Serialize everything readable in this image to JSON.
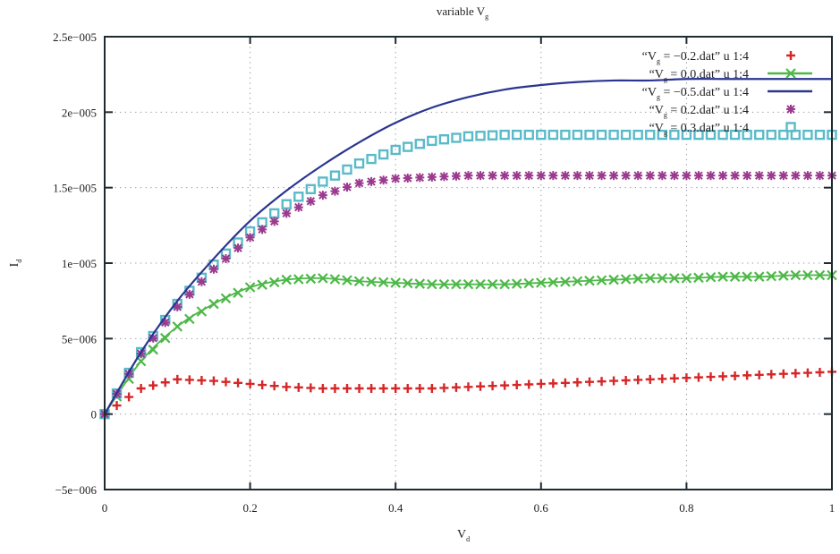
{
  "chart_data": {
    "type": "line",
    "title": "variable V",
    "title_subscript": "g",
    "xlabel": "V",
    "xlabel_subscript": "d",
    "ylabel": "I",
    "ylabel_subscript": "d",
    "xlim": [
      0,
      1
    ],
    "ylim": [
      -5e-06,
      2.5e-05
    ],
    "grid": true,
    "legend_position": "top-right",
    "x_ticks": [
      0,
      0.2,
      0.4,
      0.6,
      0.8,
      1
    ],
    "x_tick_labels": [
      "0",
      "0.2",
      "0.4",
      "0.6",
      "0.8",
      "1"
    ],
    "y_ticks": [
      -5e-06,
      0,
      5e-06,
      1e-05,
      1.5e-05,
      2e-05,
      2.5e-05
    ],
    "y_tick_labels": [
      "−5e−006",
      "0",
      "5e−006",
      "1e−005",
      "1.5e−005",
      "2e−005",
      "2.5e−005"
    ],
    "x": [
      0,
      0.05,
      0.1,
      0.15,
      0.2,
      0.25,
      0.3,
      0.35,
      0.4,
      0.45,
      0.5,
      0.55,
      0.6,
      0.65,
      0.7,
      0.75,
      0.8,
      0.85,
      0.9,
      0.95,
      1.0
    ],
    "series": [
      {
        "name": "“Vg = −0.2.dat” u 1:4",
        "legend_prefix": "“V",
        "legend_sub": "g",
        "legend_suffix": " = −0.2.dat” u 1:4",
        "style": "points",
        "marker": "plus",
        "color": "#d62728",
        "values": [
          0,
          1.7e-06,
          2.3e-06,
          2.2e-06,
          2e-06,
          1.8e-06,
          1.7e-06,
          1.7e-06,
          1.7e-06,
          1.7e-06,
          1.8e-06,
          1.9e-06,
          2e-06,
          2.1e-06,
          2.2e-06,
          2.3e-06,
          2.4e-06,
          2.5e-06,
          2.6e-06,
          2.7e-06,
          2.8e-06
        ]
      },
      {
        "name": "“Vg = 0.0.dat” u 1:4",
        "legend_prefix": "“V",
        "legend_sub": "g",
        "legend_suffix": " = 0.0.dat” u 1:4",
        "style": "linespoints",
        "marker": "x",
        "color": "#4db848",
        "values": [
          0,
          3.5e-06,
          5.8e-06,
          7.3e-06,
          8.4e-06,
          8.9e-06,
          9e-06,
          8.8e-06,
          8.7e-06,
          8.6e-06,
          8.6e-06,
          8.6e-06,
          8.7e-06,
          8.8e-06,
          8.9e-06,
          9e-06,
          9e-06,
          9.1e-06,
          9.1e-06,
          9.2e-06,
          9.2e-06
        ]
      },
      {
        "name": "“Vg = −0.5.dat” u 1:4",
        "legend_prefix": "“V",
        "legend_sub": "g",
        "legend_suffix": " = −0.5.dat” u 1:4",
        "style": "line",
        "marker": "none",
        "color": "#2a3590",
        "values": [
          0,
          4.1e-06,
          7.5e-06,
          1.03e-05,
          1.28e-05,
          1.48e-05,
          1.65e-05,
          1.8e-05,
          1.93e-05,
          2.03e-05,
          2.1e-05,
          2.15e-05,
          2.18e-05,
          2.2e-05,
          2.21e-05,
          2.21e-05,
          2.22e-05,
          2.22e-05,
          2.22e-05,
          2.22e-05,
          2.22e-05
        ]
      },
      {
        "name": "“Vg = 0.2.dat” u 1:4",
        "legend_prefix": "“V",
        "legend_sub": "g",
        "legend_suffix": " = 0.2.dat” u 1:4",
        "style": "points",
        "marker": "star",
        "color": "#9b3a8e",
        "values": [
          0,
          4e-06,
          7.1e-06,
          9.6e-06,
          1.17e-05,
          1.33e-05,
          1.45e-05,
          1.53e-05,
          1.56e-05,
          1.57e-05,
          1.58e-05,
          1.58e-05,
          1.58e-05,
          1.58e-05,
          1.58e-05,
          1.58e-05,
          1.58e-05,
          1.58e-05,
          1.58e-05,
          1.58e-05,
          1.58e-05
        ]
      },
      {
        "name": "“Vg = 0.3.dat” u 1:4",
        "legend_prefix": "“V",
        "legend_sub": "g",
        "legend_suffix": " = 0.3.dat” u 1:4",
        "style": "points",
        "marker": "square",
        "color": "#5bbac9",
        "values": [
          0,
          4.1e-06,
          7.3e-06,
          9.9e-06,
          1.21e-05,
          1.39e-05,
          1.54e-05,
          1.66e-05,
          1.75e-05,
          1.81e-05,
          1.84e-05,
          1.85e-05,
          1.85e-05,
          1.85e-05,
          1.85e-05,
          1.85e-05,
          1.85e-05,
          1.85e-05,
          1.85e-05,
          1.85e-05,
          1.85e-05
        ]
      }
    ]
  }
}
